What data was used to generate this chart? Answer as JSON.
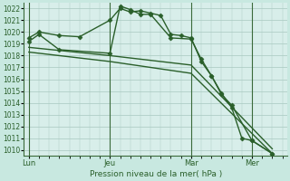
{
  "background_color": "#c8e8e0",
  "plot_bg_color": "#d8eeea",
  "grid_color": "#a8c8c0",
  "line_color": "#2a5f2a",
  "marker_color": "#2a5f2a",
  "xlabel": "Pression niveau de la mer( hPa )",
  "ylim": [
    1009.5,
    1022.5
  ],
  "yticks": [
    1010,
    1011,
    1012,
    1013,
    1014,
    1015,
    1016,
    1017,
    1018,
    1019,
    1020,
    1021,
    1022
  ],
  "xtick_labels": [
    "Lun",
    "Jeu",
    "Mar",
    "Mer"
  ],
  "xtick_positions": [
    0,
    8,
    16,
    22
  ],
  "vline_positions": [
    0,
    8,
    16,
    22
  ],
  "xlim": [
    -0.5,
    25.5
  ],
  "series": [
    {
      "x": [
        0,
        1,
        3,
        5,
        8,
        9,
        10,
        11,
        12,
        13,
        14,
        15,
        16,
        17,
        18,
        19,
        20,
        21,
        22,
        24
      ],
      "y": [
        1019.5,
        1020.0,
        1019.7,
        1019.6,
        1021.0,
        1022.0,
        1021.7,
        1021.8,
        1021.6,
        1021.4,
        1019.8,
        1019.7,
        1019.5,
        1017.5,
        1016.3,
        1014.8,
        1013.6,
        1011.0,
        1010.8,
        1009.7
      ],
      "marker": "D",
      "marker_size": 2.5,
      "linewidth": 1.0
    },
    {
      "x": [
        0,
        1,
        3,
        8,
        9,
        10,
        11,
        12,
        14,
        16,
        17,
        18,
        19,
        20,
        22,
        24
      ],
      "y": [
        1019.2,
        1019.8,
        1018.5,
        1018.2,
        1022.2,
        1021.9,
        1021.5,
        1021.5,
        1019.5,
        1019.4,
        1017.7,
        1016.3,
        1014.7,
        1013.8,
        1010.8,
        1009.7
      ],
      "marker": "D",
      "marker_size": 2.5,
      "linewidth": 1.0
    },
    {
      "x": [
        0,
        8,
        16,
        24
      ],
      "y": [
        1018.7,
        1018.0,
        1017.2,
        1010.1
      ],
      "marker": null,
      "marker_size": 0,
      "linewidth": 1.0
    },
    {
      "x": [
        0,
        8,
        16,
        24
      ],
      "y": [
        1018.3,
        1017.5,
        1016.5,
        1009.7
      ],
      "marker": null,
      "marker_size": 0,
      "linewidth": 1.0
    }
  ]
}
